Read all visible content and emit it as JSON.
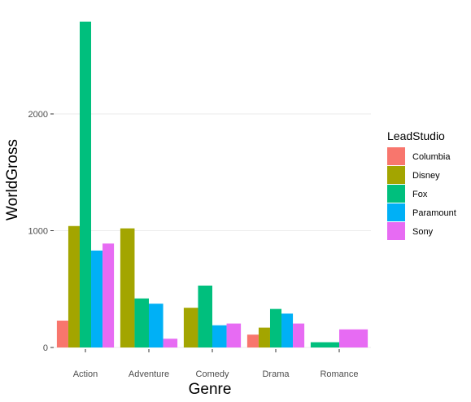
{
  "chart_data": {
    "type": "bar",
    "xlabel": "Genre",
    "ylabel": "WorldGross",
    "categories": [
      "Action",
      "Adventure",
      "Comedy",
      "Drama",
      "Romance"
    ],
    "ylim": [
      0,
      2800
    ],
    "yticks": [
      0,
      1000,
      2000
    ],
    "yticklabels": [
      "0",
      "1000",
      "2000"
    ],
    "grid": true,
    "legend": {
      "title": "LeadStudio",
      "position": "right"
    },
    "series": [
      {
        "name": "Columbia",
        "color": "#F8766D",
        "values": [
          230,
          null,
          null,
          110,
          null
        ]
      },
      {
        "name": "Disney",
        "color": "#A3A500",
        "values": [
          1040,
          1020,
          340,
          170,
          null
        ]
      },
      {
        "name": "Fox",
        "color": "#00BF7D",
        "values": [
          2790,
          420,
          530,
          330,
          45
        ]
      },
      {
        "name": "Paramount",
        "color": "#00B0F6",
        "values": [
          830,
          375,
          190,
          290,
          null
        ]
      },
      {
        "name": "Sony",
        "color": "#E76BF3",
        "values": [
          890,
          75,
          205,
          205,
          155
        ]
      }
    ]
  }
}
